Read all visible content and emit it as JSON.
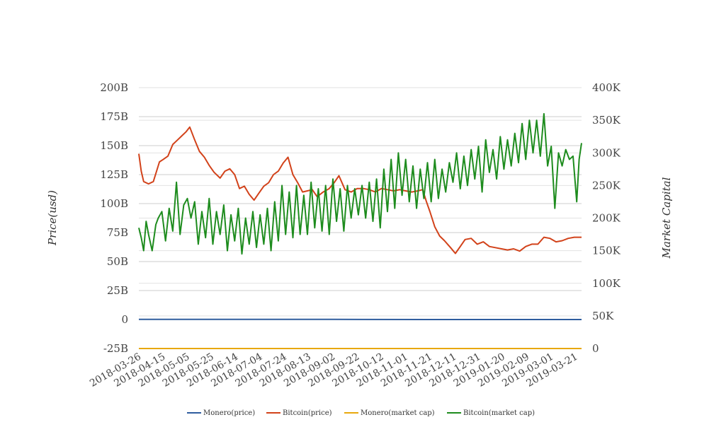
{
  "chart_data": {
    "type": "line",
    "title": "",
    "left_axis": {
      "label": "Price(usd)",
      "range": [
        -25,
        200
      ],
      "ticks": [
        "-25B",
        "0",
        "25B",
        "50B",
        "75B",
        "100B",
        "125B",
        "150B",
        "175B",
        "200B"
      ]
    },
    "right_axis": {
      "label": "Market Capital",
      "range": [
        0,
        400
      ],
      "ticks": [
        "0",
        "50K",
        "100K",
        "150K",
        "200K",
        "250K",
        "300K",
        "350K",
        "400K"
      ]
    },
    "x_axis": {
      "range": [
        "2018-03-26",
        "2019-03-26"
      ],
      "ticks": [
        "2018-03-26",
        "2018-04-15",
        "2018-05-05",
        "2018-05-25",
        "2018-06-14",
        "2018-07-04",
        "2018-07-24",
        "2018-08-13",
        "2018-09-02",
        "2018-09-22",
        "2018-10-12",
        "2018-11-01",
        "2018-11-21",
        "2018-12-11",
        "2018-12-31",
        "2019-01-20",
        "2019-02-09",
        "2019-03-01",
        "2019-03-21"
      ]
    },
    "grid": true,
    "legend_position": "bottom",
    "series": [
      {
        "name": "Monero(price)",
        "axis": "left",
        "color": "#2f5d9e",
        "x": [
          "2018-03-26",
          "2018-06-14",
          "2018-09-02",
          "2018-11-21",
          "2019-02-09",
          "2019-03-26"
        ],
        "values": [
          0.1,
          0.1,
          0.1,
          0.0,
          0.0,
          0.0
        ]
      },
      {
        "name": "Bitcoin(price)",
        "axis": "left",
        "color": "#d2421a",
        "x": [
          "2018-03-26",
          "2018-03-28",
          "2018-03-30",
          "2018-04-03",
          "2018-04-07",
          "2018-04-12",
          "2018-04-15",
          "2018-04-19",
          "2018-04-23",
          "2018-04-27",
          "2018-04-30",
          "2018-05-04",
          "2018-05-07",
          "2018-05-11",
          "2018-05-15",
          "2018-05-19",
          "2018-05-23",
          "2018-05-27",
          "2018-06-01",
          "2018-06-05",
          "2018-06-09",
          "2018-06-13",
          "2018-06-17",
          "2018-06-21",
          "2018-06-25",
          "2018-06-29",
          "2018-07-03",
          "2018-07-07",
          "2018-07-11",
          "2018-07-15",
          "2018-07-19",
          "2018-07-23",
          "2018-07-27",
          "2018-07-31",
          "2018-08-04",
          "2018-08-08",
          "2018-08-12",
          "2018-08-16",
          "2018-08-20",
          "2018-08-25",
          "2018-08-30",
          "2018-09-03",
          "2018-09-07",
          "2018-09-12",
          "2018-09-17",
          "2018-09-22",
          "2018-09-27",
          "2018-10-02",
          "2018-10-07",
          "2018-10-12",
          "2018-10-17",
          "2018-10-22",
          "2018-10-27",
          "2018-11-01",
          "2018-11-06",
          "2018-11-11",
          "2018-11-15",
          "2018-11-18",
          "2018-11-21",
          "2018-11-25",
          "2018-11-29",
          "2018-12-03",
          "2018-12-08",
          "2018-12-12",
          "2018-12-16",
          "2018-12-20",
          "2018-12-25",
          "2018-12-30",
          "2019-01-04",
          "2019-01-09",
          "2019-01-14",
          "2019-01-19",
          "2019-01-24",
          "2019-01-29",
          "2019-02-03",
          "2019-02-08",
          "2019-02-13",
          "2019-02-18",
          "2019-02-23",
          "2019-02-28",
          "2019-03-05",
          "2019-03-10",
          "2019-03-15",
          "2019-03-20",
          "2019-03-26"
        ],
        "values": [
          143,
          128,
          119,
          117,
          119,
          136,
          138,
          141,
          151,
          155,
          158,
          162,
          166,
          155,
          145,
          140,
          133,
          127,
          122,
          128,
          130,
          125,
          113,
          115,
          108,
          103,
          109,
          115,
          118,
          125,
          128,
          135,
          140,
          125,
          118,
          110,
          111,
          112,
          106,
          110,
          113,
          118,
          124,
          112,
          110,
          113,
          113,
          112,
          110,
          113,
          112,
          111,
          112,
          111,
          110,
          111,
          112,
          102,
          93,
          80,
          72,
          68,
          62,
          57,
          63,
          69,
          70,
          65,
          67,
          63,
          62,
          61,
          60,
          61,
          59,
          63,
          65,
          65,
          71,
          70,
          67,
          68,
          70,
          71,
          71
        ]
      },
      {
        "name": "Monero(market cap)",
        "axis": "right",
        "color": "#e8a80c",
        "x": [
          "2018-03-26",
          "2019-03-26"
        ],
        "values": [
          0,
          0
        ]
      },
      {
        "name": "Bitcoin(market cap)",
        "axis": "right",
        "color": "#1e8c1e",
        "x": [
          "2018-03-26",
          "2018-03-28",
          "2018-03-30",
          "2018-04-01",
          "2018-04-03",
          "2018-04-06",
          "2018-04-09",
          "2018-04-11",
          "2018-04-14",
          "2018-04-17",
          "2018-04-20",
          "2018-04-23",
          "2018-04-26",
          "2018-04-29",
          "2018-05-02",
          "2018-05-05",
          "2018-05-08",
          "2018-05-11",
          "2018-05-14",
          "2018-05-17",
          "2018-05-20",
          "2018-05-23",
          "2018-05-26",
          "2018-05-29",
          "2018-06-01",
          "2018-06-04",
          "2018-06-07",
          "2018-06-10",
          "2018-06-13",
          "2018-06-16",
          "2018-06-19",
          "2018-06-22",
          "2018-06-25",
          "2018-06-28",
          "2018-07-01",
          "2018-07-04",
          "2018-07-07",
          "2018-07-10",
          "2018-07-13",
          "2018-07-16",
          "2018-07-19",
          "2018-07-22",
          "2018-07-25",
          "2018-07-28",
          "2018-07-31",
          "2018-08-03",
          "2018-08-06",
          "2018-08-09",
          "2018-08-12",
          "2018-08-15",
          "2018-08-18",
          "2018-08-21",
          "2018-08-24",
          "2018-08-27",
          "2018-08-30",
          "2018-09-02",
          "2018-09-05",
          "2018-09-08",
          "2018-09-11",
          "2018-09-14",
          "2018-09-17",
          "2018-09-20",
          "2018-09-23",
          "2018-09-26",
          "2018-09-29",
          "2018-10-02",
          "2018-10-05",
          "2018-10-08",
          "2018-10-11",
          "2018-10-14",
          "2018-10-17",
          "2018-10-20",
          "2018-10-23",
          "2018-10-26",
          "2018-10-29",
          "2018-11-01",
          "2018-11-04",
          "2018-11-07",
          "2018-11-10",
          "2018-11-13",
          "2018-11-16",
          "2018-11-19",
          "2018-11-22",
          "2018-11-25",
          "2018-11-28",
          "2018-12-01",
          "2018-12-04",
          "2018-12-07",
          "2018-12-10",
          "2018-12-13",
          "2018-12-16",
          "2018-12-19",
          "2018-12-22",
          "2018-12-25",
          "2018-12-28",
          "2018-12-31",
          "2019-01-03",
          "2019-01-06",
          "2019-01-09",
          "2019-01-12",
          "2019-01-15",
          "2019-01-18",
          "2019-01-21",
          "2019-01-24",
          "2019-01-27",
          "2019-01-30",
          "2019-02-02",
          "2019-02-05",
          "2019-02-08",
          "2019-02-11",
          "2019-02-14",
          "2019-02-17",
          "2019-02-20",
          "2019-02-23",
          "2019-02-26",
          "2019-03-01",
          "2019-03-04",
          "2019-03-07",
          "2019-03-10",
          "2019-03-13",
          "2019-03-16",
          "2019-03-19",
          "2019-03-22",
          "2019-03-24",
          "2019-03-26"
        ],
        "values": [
          185,
          170,
          150,
          195,
          175,
          150,
          190,
          200,
          210,
          165,
          215,
          180,
          255,
          175,
          220,
          230,
          200,
          225,
          160,
          210,
          170,
          230,
          160,
          210,
          175,
          220,
          150,
          205,
          165,
          215,
          145,
          200,
          160,
          210,
          155,
          205,
          160,
          215,
          150,
          225,
          165,
          250,
          175,
          240,
          170,
          250,
          175,
          235,
          175,
          255,
          185,
          245,
          180,
          250,
          175,
          260,
          195,
          245,
          180,
          250,
          200,
          245,
          205,
          250,
          200,
          255,
          195,
          260,
          185,
          275,
          210,
          290,
          215,
          300,
          235,
          290,
          225,
          280,
          215,
          275,
          230,
          285,
          225,
          290,
          230,
          275,
          240,
          285,
          255,
          300,
          245,
          295,
          250,
          305,
          260,
          310,
          240,
          320,
          270,
          305,
          260,
          325,
          275,
          320,
          280,
          330,
          285,
          345,
          290,
          350,
          300,
          350,
          295,
          360,
          280,
          310,
          215,
          300,
          280,
          305,
          290,
          295,
          225,
          290,
          315
        ]
      }
    ]
  }
}
